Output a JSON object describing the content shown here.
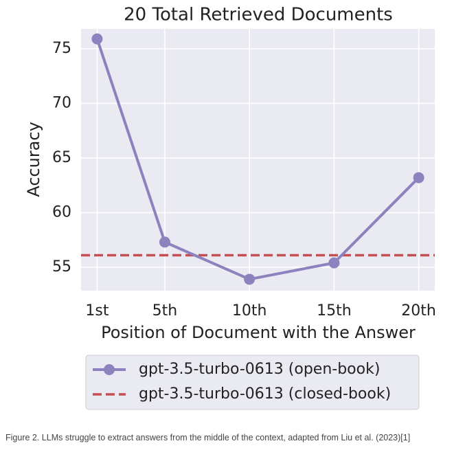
{
  "chart_data": {
    "type": "line",
    "title": "20 Total Retrieved Documents",
    "xlabel": "Position of Document with the Answer",
    "ylabel": "Accuracy",
    "x": [
      1,
      5,
      10,
      15,
      20
    ],
    "series": [
      {
        "name": "gpt-3.5-turbo-0613 (open-book)",
        "color": "#8c82be",
        "values": [
          75.9,
          57.3,
          53.9,
          55.4,
          63.2
        ]
      }
    ],
    "reference_lines": [
      {
        "name": "gpt-3.5-turbo-0613 (closed-book)",
        "color": "#c44e52",
        "value": 56.1,
        "style": "dashed"
      }
    ],
    "xlim": [
      0.05,
      20.95
    ],
    "xticks": [
      {
        "value": 1,
        "label": "1st"
      },
      {
        "value": 5,
        "label": "5th"
      },
      {
        "value": 10,
        "label": "10th"
      },
      {
        "value": 15,
        "label": "15th"
      },
      {
        "value": 20,
        "label": "20th"
      }
    ],
    "ylim": [
      52.86,
      76.82
    ],
    "yticks": [
      55,
      60,
      65,
      70,
      75
    ],
    "grid": true,
    "legend": "below"
  },
  "caption": "Figure 2. LLMs struggle to extract answers from the middle of the context, adapted from Liu et al. (2023)[1]"
}
